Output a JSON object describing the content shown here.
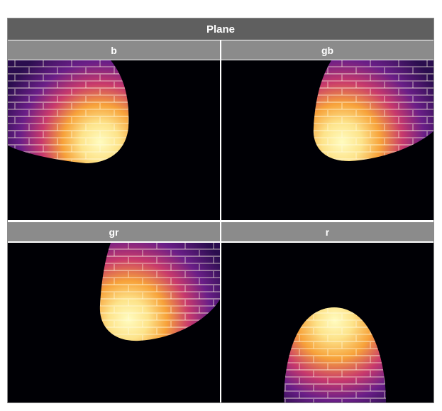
{
  "title": "Plane",
  "colors": {
    "title_bg": "#5f5f5f",
    "header_bg": "#8b8b8b",
    "plot_bg": "#000005",
    "frame": "#8c8c8c"
  },
  "panels": [
    {
      "label": "b"
    },
    {
      "label": "gb"
    },
    {
      "label": "gr"
    },
    {
      "label": "r"
    }
  ]
}
